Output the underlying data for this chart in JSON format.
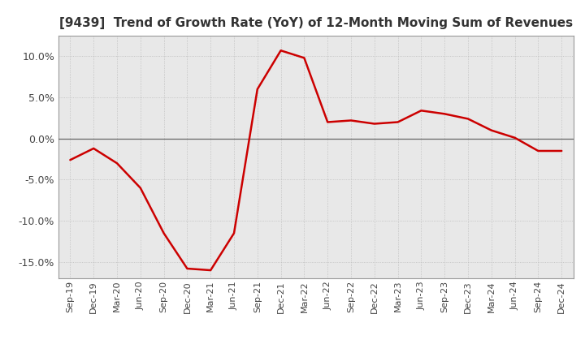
{
  "title": "[9439]  Trend of Growth Rate (YoY) of 12-Month Moving Sum of Revenues",
  "line_color": "#cc0000",
  "line_width": 1.8,
  "background_color": "#ffffff",
  "plot_bg_color": "#e8e8e8",
  "grid_color": "#bbbbbb",
  "zero_line_color": "#666666",
  "title_color": "#333333",
  "tick_color": "#444444",
  "ylim": [
    -0.17,
    0.125
  ],
  "yticks": [
    -0.15,
    -0.1,
    -0.05,
    0.0,
    0.05,
    0.1
  ],
  "x_labels": [
    "Sep-19",
    "Dec-19",
    "Mar-20",
    "Jun-20",
    "Sep-20",
    "Dec-20",
    "Mar-21",
    "Jun-21",
    "Sep-21",
    "Dec-21",
    "Mar-22",
    "Jun-22",
    "Sep-22",
    "Dec-22",
    "Mar-23",
    "Jun-23",
    "Sep-23",
    "Dec-23",
    "Mar-24",
    "Jun-24",
    "Sep-24",
    "Dec-24"
  ],
  "values": [
    -0.026,
    -0.012,
    -0.03,
    -0.06,
    -0.115,
    -0.158,
    -0.16,
    -0.115,
    0.06,
    0.107,
    0.098,
    0.02,
    0.022,
    0.018,
    0.02,
    0.034,
    0.03,
    0.024,
    0.01,
    0.001,
    -0.015,
    -0.015
  ]
}
